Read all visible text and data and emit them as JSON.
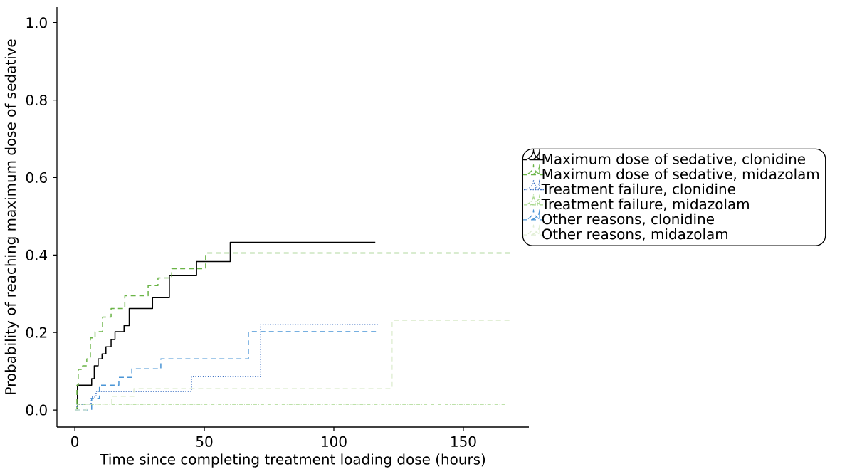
{
  "chart_data": {
    "type": "step",
    "xlabel": "Time since completing treatment loading dose (hours)",
    "ylabel": "Probability of reaching maximum dose of sedative",
    "xlim": [
      -6.9,
      175.3
    ],
    "ylim": [
      -0.044,
      1.04
    ],
    "xticks": [
      0,
      50,
      100,
      150
    ],
    "yticks": [
      {
        "value": 0,
        "label": "0.0"
      },
      {
        "value": 0.2,
        "label": "0.2"
      },
      {
        "value": 0.4,
        "label": "0.4"
      },
      {
        "value": 0.6,
        "label": "0.6"
      },
      {
        "value": 0.8,
        "label": "0.8"
      },
      {
        "value": 1,
        "label": "1.0"
      }
    ],
    "grid": false,
    "legend": "right",
    "marker": "none",
    "series": [
      {
        "name": "Maximum dose of sedative, clonidine",
        "color": "#000000",
        "line_style": "solid",
        "x": [
          0,
          1,
          6.5,
          7.5,
          9,
          10.5,
          12,
          14,
          15.5,
          19,
          21,
          30,
          36.5,
          47,
          60,
          116
        ],
        "values": [
          0,
          0.064,
          0.081,
          0.114,
          0.132,
          0.145,
          0.163,
          0.182,
          0.202,
          0.218,
          0.262,
          0.29,
          0.347,
          0.383,
          0.433,
          0.433
        ]
      },
      {
        "name": "Maximum dose of sedative, midazolam",
        "color": "#6ab446",
        "line_style": "dashed",
        "x": [
          0,
          0.8,
          1.3,
          3,
          4.6,
          6,
          7.8,
          10.7,
          14,
          19.3,
          28.3,
          32.1,
          37.4,
          50.5,
          169
        ],
        "values": [
          0,
          0.064,
          0.105,
          0.114,
          0.132,
          0.186,
          0.202,
          0.24,
          0.262,
          0.295,
          0.321,
          0.341,
          0.365,
          0.405,
          0.405
        ]
      },
      {
        "name": "Treatment failure, clonidine",
        "color": "#3b6fc2",
        "line_style": "dotted",
        "x": [
          0,
          0.8,
          6.3,
          8.2,
          45,
          71.7,
          117
        ],
        "values": [
          0,
          0.015,
          0.033,
          0.048,
          0.086,
          0.22,
          0.22
        ]
      },
      {
        "name": "Treatment failure, midazolam",
        "color": "#a9d88f",
        "line_style": "dashdot",
        "x": [
          0,
          1,
          166
        ],
        "values": [
          0,
          0.015,
          0.015
        ]
      },
      {
        "name": "Other reasons, clonidine",
        "color": "#4a95d6",
        "line_style": "dashed",
        "x": [
          0,
          6.5,
          9.5,
          17,
          22,
          33.2,
          67,
          117
        ],
        "values": [
          0,
          0.03,
          0.064,
          0.084,
          0.106,
          0.132,
          0.202,
          0.202
        ]
      },
      {
        "name": "Other reasons, midazolam",
        "color": "#e2efd6",
        "line_style": "dashed",
        "x": [
          0,
          4.6,
          14.2,
          22.8,
          122.5,
          168.5
        ],
        "values": [
          0,
          0.015,
          0.035,
          0.055,
          0.231,
          0.231
        ]
      }
    ]
  }
}
